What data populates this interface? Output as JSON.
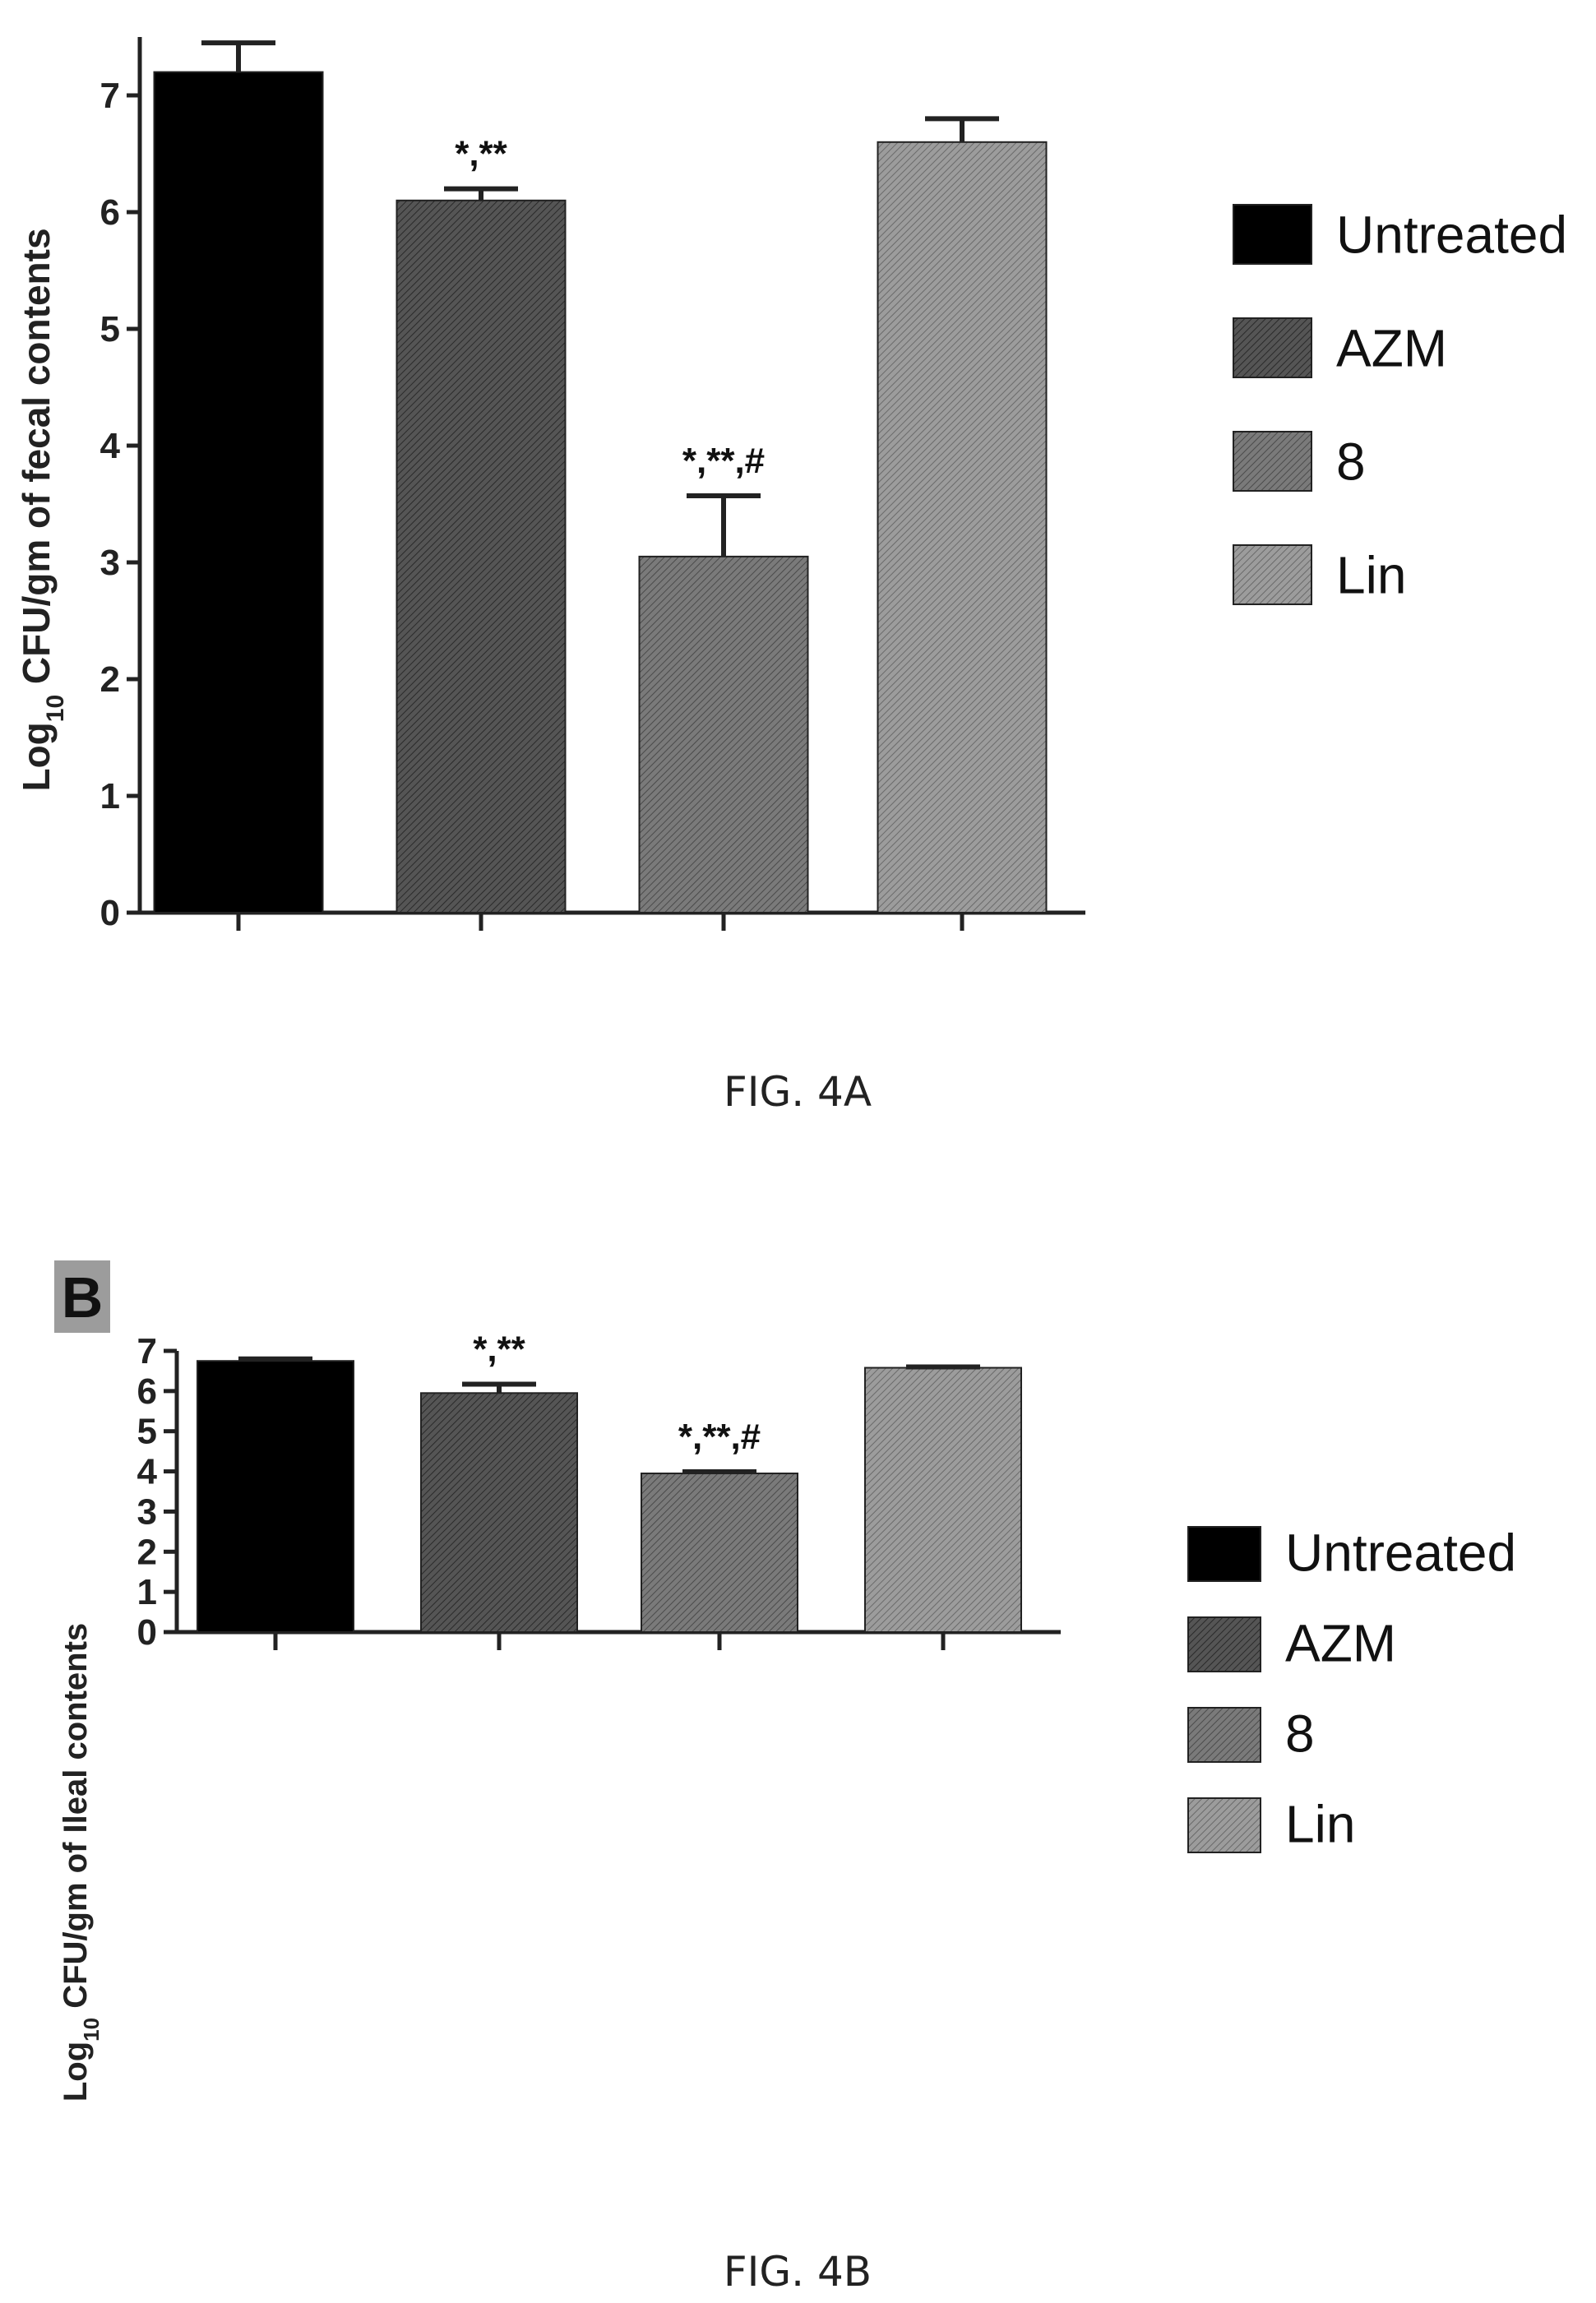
{
  "figures": [
    {
      "caption": "FIG. 4A",
      "panel_label": ""
    },
    {
      "caption": "FIG. 4B",
      "panel_label": "B"
    }
  ],
  "colors": {
    "Untreated": "#000000",
    "AZM": "#444444",
    "8": "#6a6a6a",
    "Lin": "#8c8c8c"
  },
  "chart_data": [
    {
      "type": "bar",
      "categories": [
        "Untreated",
        "AZM",
        "8",
        "Lin"
      ],
      "values": [
        7.2,
        6.1,
        3.05,
        6.6
      ],
      "errors": [
        0.25,
        0.1,
        0.52,
        0.2
      ],
      "significance": [
        "",
        "*,**",
        "*,**,#",
        ""
      ],
      "legend": [
        "Untreated",
        "AZM",
        "8",
        "Lin"
      ],
      "legend_position": "right",
      "ylabel": "Log10 CFU/gm of fecal contents",
      "ylim": [
        0,
        7.5
      ],
      "yticks": [
        0,
        1,
        2,
        3,
        4,
        5,
        6,
        7
      ],
      "grid": false
    },
    {
      "type": "bar",
      "categories": [
        "Untreated",
        "AZM",
        "8",
        "Lin"
      ],
      "values": [
        6.75,
        5.95,
        3.95,
        6.58
      ],
      "errors": [
        0.05,
        0.22,
        0.04,
        0.02
      ],
      "significance": [
        "",
        "*,**",
        "*,**,#",
        ""
      ],
      "legend": [
        "Untreated",
        "AZM",
        "8",
        "Lin"
      ],
      "legend_position": "right",
      "ylabel": "Log10 CFU/gm of Ileal contents",
      "ylim": [
        0,
        7
      ],
      "yticks": [
        0,
        1,
        2,
        3,
        4,
        5,
        6,
        7
      ],
      "grid": false
    }
  ]
}
